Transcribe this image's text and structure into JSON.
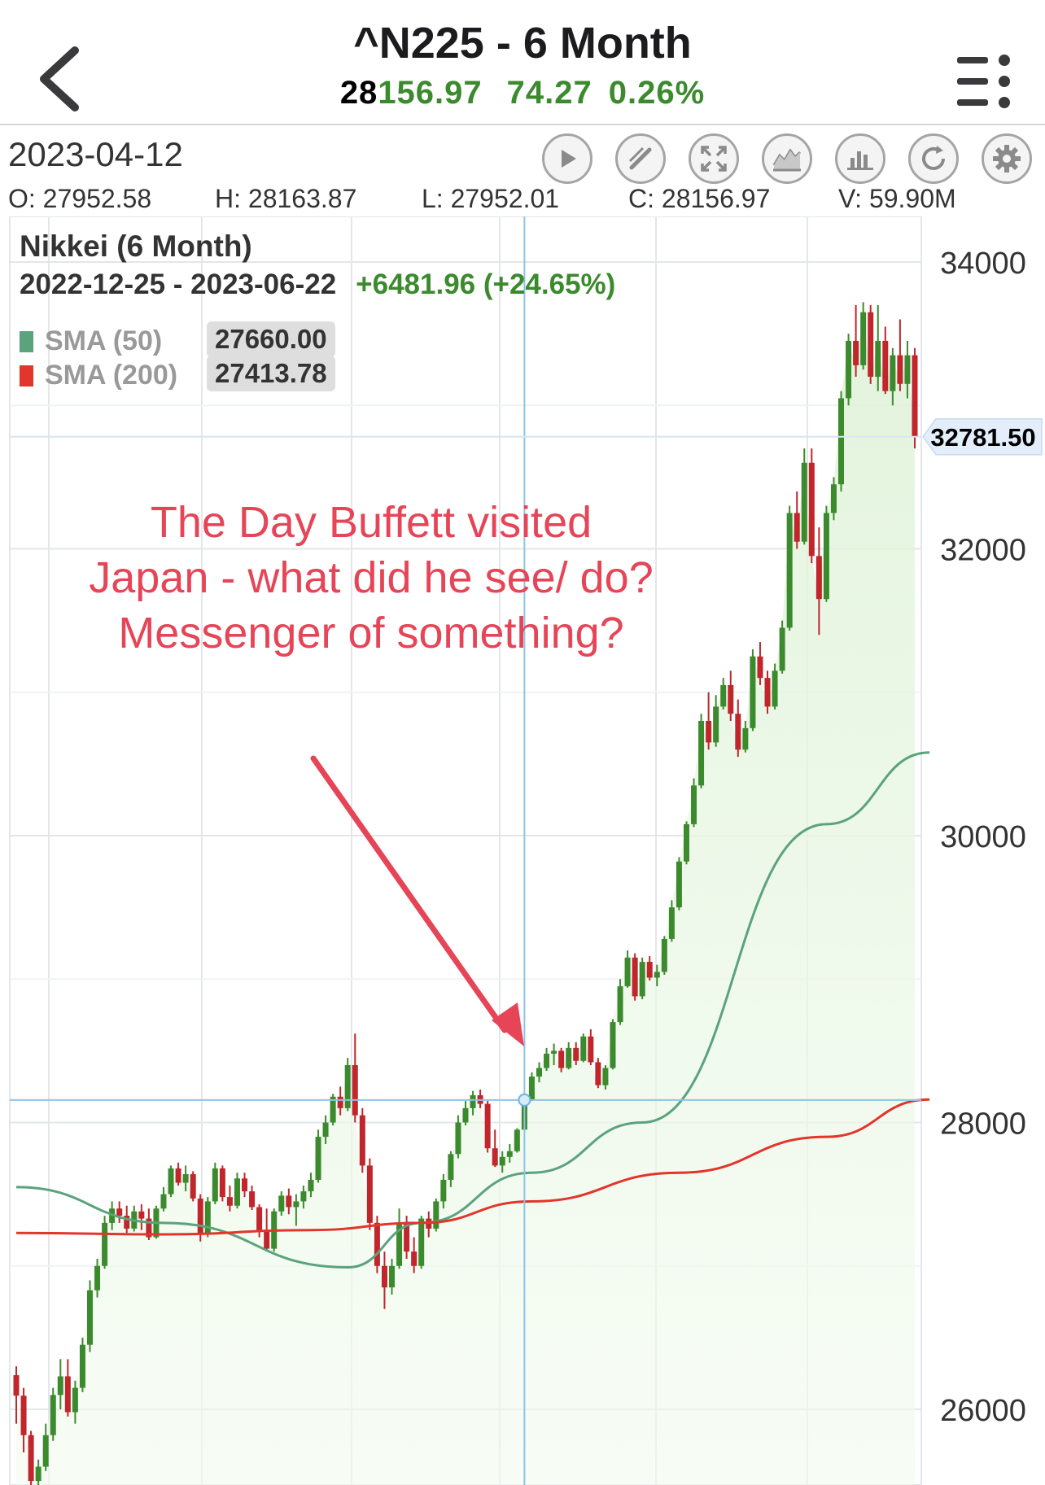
{
  "header": {
    "title": "^N225 - 6 Month",
    "price_prefix": "28",
    "price_rest": "156.97",
    "change": "74.27",
    "change_pct": "0.26%",
    "colors": {
      "up": "#3c8a2e",
      "down": "#c0262b"
    }
  },
  "toolbar": {
    "date": "2023-04-12",
    "tools": [
      "play-icon",
      "draw-pencil-icon",
      "fullscreen-icon",
      "area-chart-icon",
      "bar-chart-icon",
      "refresh-icon",
      "settings-gear-icon"
    ]
  },
  "ohlc": {
    "open": "O: 27952.58",
    "high": "H: 28163.87",
    "low": "L: 27952.01",
    "close": "C: 28156.97",
    "volume": "V: 59.90M"
  },
  "chart_info": {
    "name": "Nikkei (6 Month)",
    "range": "2022-12-25 - 2023-06-22",
    "change": "+6481.96 (+24.65%)",
    "sma50_label": "SMA (50)",
    "sma50_value": "27660.00",
    "sma50_color": "#5aa37d",
    "sma200_label": "SMA (200)",
    "sma200_value": "27413.78",
    "sma200_color": "#e2352b",
    "last_price_tag": "32781.50"
  },
  "annotation": {
    "text": "The Day Buffett visited Japan - what did he see/ do? Messenger of something?",
    "color": "#e64557"
  },
  "chart_data": {
    "type": "candlestick",
    "title": "Nikkei (6 Month)",
    "y_ticks": [
      26000,
      28000,
      30000,
      32000,
      34000
    ],
    "ylim": [
      25500,
      34400
    ],
    "grid": true,
    "crosshair": {
      "date": "2023-04-12",
      "price": 28156.97
    },
    "candles": [
      [
        26238,
        26300,
        25900,
        26095
      ],
      [
        26095,
        26150,
        25700,
        25820
      ],
      [
        25820,
        25850,
        25450,
        25500
      ],
      [
        25500,
        25650,
        25420,
        25600
      ],
      [
        25600,
        25900,
        25570,
        25820
      ],
      [
        25820,
        26150,
        25780,
        26100
      ],
      [
        26100,
        26350,
        26000,
        26230
      ],
      [
        26230,
        26350,
        25950,
        25980
      ],
      [
        25980,
        26200,
        25900,
        26150
      ],
      [
        26150,
        26500,
        26120,
        26450
      ],
      [
        26450,
        26900,
        26400,
        26830
      ],
      [
        26830,
        27050,
        26780,
        27000
      ],
      [
        27000,
        27350,
        26980,
        27300
      ],
      [
        27300,
        27450,
        27250,
        27400
      ],
      [
        27400,
        27450,
        27300,
        27350
      ],
      [
        27350,
        27420,
        27230,
        27260
      ],
      [
        27260,
        27420,
        27240,
        27380
      ],
      [
        27380,
        27430,
        27250,
        27330
      ],
      [
        27330,
        27400,
        27180,
        27200
      ],
      [
        27200,
        27420,
        27190,
        27400
      ],
      [
        27400,
        27550,
        27380,
        27500
      ],
      [
        27500,
        27700,
        27480,
        27680
      ],
      [
        27680,
        27720,
        27560,
        27580
      ],
      [
        27580,
        27700,
        27520,
        27640
      ],
      [
        27640,
        27660,
        27450,
        27470
      ],
      [
        27470,
        27500,
        27170,
        27220
      ],
      [
        27220,
        27480,
        27200,
        27450
      ],
      [
        27450,
        27720,
        27430,
        27680
      ],
      [
        27680,
        27700,
        27450,
        27480
      ],
      [
        27480,
        27560,
        27380,
        27420
      ],
      [
        27420,
        27650,
        27400,
        27610
      ],
      [
        27610,
        27650,
        27480,
        27520
      ],
      [
        27520,
        27560,
        27390,
        27410
      ],
      [
        27410,
        27430,
        27200,
        27250
      ],
      [
        27250,
        27400,
        27100,
        27120
      ],
      [
        27120,
        27400,
        27100,
        27380
      ],
      [
        27380,
        27520,
        27350,
        27490
      ],
      [
        27490,
        27540,
        27360,
        27410
      ],
      [
        27410,
        27500,
        27280,
        27450
      ],
      [
        27450,
        27560,
        27400,
        27520
      ],
      [
        27520,
        27650,
        27480,
        27600
      ],
      [
        27600,
        27950,
        27580,
        27900
      ],
      [
        27900,
        28050,
        27850,
        28000
      ],
      [
        28000,
        28200,
        27980,
        28180
      ],
      [
        28180,
        28250,
        28050,
        28100
      ],
      [
        28100,
        28450,
        28080,
        28400
      ],
      [
        28400,
        28620,
        28000,
        28050
      ],
      [
        28050,
        28100,
        27650,
        27700
      ],
      [
        27700,
        27750,
        27250,
        27300
      ],
      [
        27300,
        27350,
        26950,
        27000
      ],
      [
        27000,
        27100,
        26700,
        26850
      ],
      [
        26850,
        27050,
        26800,
        27000
      ],
      [
        27000,
        27400,
        26980,
        27300
      ],
      [
        27300,
        27350,
        27050,
        27100
      ],
      [
        27100,
        27200,
        26950,
        27000
      ],
      [
        27000,
        27350,
        26980,
        27330
      ],
      [
        27330,
        27380,
        27200,
        27260
      ],
      [
        27260,
        27470,
        27240,
        27450
      ],
      [
        27450,
        27640,
        27400,
        27600
      ],
      [
        27600,
        27800,
        27550,
        27780
      ],
      [
        27780,
        28050,
        27750,
        28000
      ],
      [
        28000,
        28150,
        27980,
        28100
      ],
      [
        28100,
        28220,
        28050,
        28190
      ],
      [
        28190,
        28230,
        28100,
        28130
      ],
      [
        28130,
        28150,
        27790,
        27820
      ],
      [
        27820,
        27950,
        27690,
        27700
      ],
      [
        27700,
        27800,
        27650,
        27760
      ],
      [
        27760,
        27850,
        27720,
        27800
      ],
      [
        27800,
        27960,
        27790,
        27950
      ],
      [
        27950,
        28160,
        27950,
        28160
      ],
      [
        28160,
        28350,
        28150,
        28320
      ],
      [
        28320,
        28420,
        28280,
        28380
      ],
      [
        28380,
        28520,
        28360,
        28480
      ],
      [
        28480,
        28550,
        28400,
        28500
      ],
      [
        28500,
        28520,
        28350,
        28380
      ],
      [
        28380,
        28560,
        28370,
        28520
      ],
      [
        28520,
        28560,
        28400,
        28430
      ],
      [
        28430,
        28620,
        28420,
        28600
      ],
      [
        28600,
        28650,
        28400,
        28420
      ],
      [
        28420,
        28450,
        28240,
        28260
      ],
      [
        28260,
        28400,
        28230,
        28380
      ],
      [
        28380,
        28720,
        28370,
        28700
      ],
      [
        28700,
        29000,
        28680,
        28950
      ],
      [
        28950,
        29200,
        28940,
        29150
      ],
      [
        29150,
        29180,
        28850,
        28880
      ],
      [
        28880,
        29150,
        28860,
        29120
      ],
      [
        29120,
        29160,
        28990,
        29010
      ],
      [
        29010,
        29100,
        28950,
        29050
      ],
      [
        29050,
        29300,
        29030,
        29280
      ],
      [
        29280,
        29550,
        29260,
        29500
      ],
      [
        29500,
        29850,
        29480,
        29820
      ],
      [
        29820,
        30100,
        29800,
        30080
      ],
      [
        30080,
        30400,
        30060,
        30350
      ],
      [
        30350,
        30850,
        30330,
        30800
      ],
      [
        30800,
        31000,
        30600,
        30650
      ],
      [
        30650,
        30980,
        30620,
        30900
      ],
      [
        30900,
        31100,
        30880,
        31050
      ],
      [
        31050,
        31150,
        30800,
        30850
      ],
      [
        30850,
        30950,
        30550,
        30600
      ],
      [
        30600,
        30800,
        30580,
        30750
      ],
      [
        30750,
        31300,
        30730,
        31250
      ],
      [
        31250,
        31350,
        31050,
        31100
      ],
      [
        31100,
        31150,
        30850,
        30900
      ],
      [
        30900,
        31200,
        30880,
        31150
      ],
      [
        31150,
        31500,
        31130,
        31450
      ],
      [
        31450,
        32300,
        31430,
        32250
      ],
      [
        32250,
        32400,
        32000,
        32050
      ],
      [
        32050,
        32700,
        32030,
        32600
      ],
      [
        32600,
        32700,
        31900,
        31950
      ],
      [
        31950,
        32150,
        31400,
        31650
      ],
      [
        31650,
        32300,
        31630,
        32250
      ],
      [
        32250,
        32500,
        32200,
        32450
      ],
      [
        32450,
        33100,
        32400,
        33050
      ],
      [
        33050,
        33500,
        33000,
        33450
      ],
      [
        33450,
        33700,
        33200,
        33280
      ],
      [
        33280,
        33720,
        33250,
        33650
      ],
      [
        33650,
        33700,
        33150,
        33200
      ],
      [
        33200,
        33700,
        33100,
        33450
      ],
      [
        33450,
        33550,
        33080,
        33100
      ],
      [
        33100,
        33400,
        33000,
        33350
      ],
      [
        33350,
        33600,
        33100,
        33150
      ],
      [
        33150,
        33450,
        33050,
        33350
      ],
      [
        33350,
        33400,
        32700,
        32781
      ]
    ],
    "sma_50": [
      [
        0,
        27550
      ],
      [
        20,
        27300
      ],
      [
        45,
        26990
      ],
      [
        55,
        27300
      ],
      [
        70,
        27650
      ],
      [
        85,
        28000
      ],
      [
        110,
        30080
      ],
      [
        124,
        30580
      ]
    ],
    "sma_200": [
      [
        0,
        27230
      ],
      [
        20,
        27220
      ],
      [
        40,
        27250
      ],
      [
        55,
        27300
      ],
      [
        70,
        27450
      ],
      [
        90,
        27650
      ],
      [
        110,
        27900
      ],
      [
        124,
        28160
      ]
    ]
  }
}
